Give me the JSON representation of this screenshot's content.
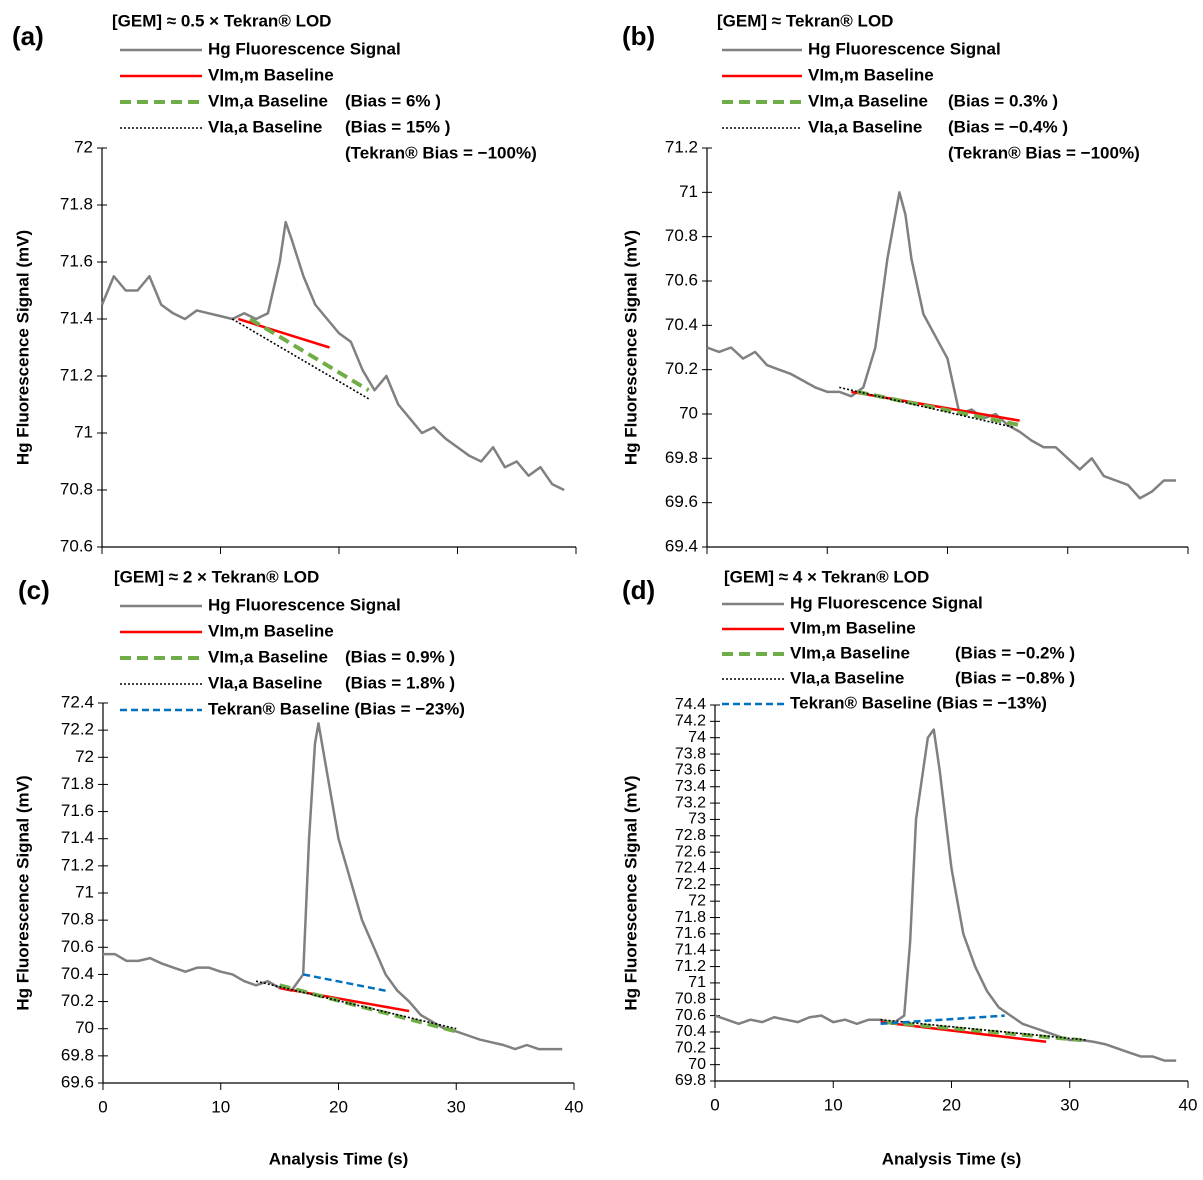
{
  "chart_data": [
    {
      "type": "line",
      "panel_label": "(a)",
      "title": "[GEM] ≈ 0.5 × Tekran® LOD",
      "y_label": "Hg Fluorescence Signal (mV)",
      "xlim": [
        0,
        40
      ],
      "xticks": [
        0,
        10,
        20,
        30,
        40
      ],
      "x_tick_labels": false,
      "ylim": [
        70.6,
        72
      ],
      "yticks": [
        70.6,
        70.8,
        71,
        71.2,
        71.4,
        71.6,
        71.8,
        72
      ],
      "series": [
        {
          "name": "Hg Fluorescence Signal",
          "color": "#808080",
          "dash": "solid",
          "x": [
            0,
            1,
            2,
            3,
            4,
            5,
            6,
            7,
            8,
            9,
            10,
            11,
            12,
            13,
            14,
            15,
            15.5,
            16,
            17,
            18,
            19,
            20,
            21,
            22,
            23,
            24,
            25,
            26,
            27,
            28,
            29,
            30,
            31,
            32,
            33,
            34,
            35,
            36,
            37,
            38,
            39
          ],
          "values": [
            71.45,
            71.55,
            71.5,
            71.5,
            71.55,
            71.45,
            71.42,
            71.4,
            71.43,
            71.42,
            71.41,
            71.4,
            71.42,
            71.4,
            71.42,
            71.6,
            71.74,
            71.68,
            71.55,
            71.45,
            71.4,
            71.35,
            71.32,
            71.22,
            71.15,
            71.2,
            71.1,
            71.05,
            71.0,
            71.02,
            70.98,
            70.95,
            70.92,
            70.9,
            70.95,
            70.88,
            70.9,
            70.85,
            70.88,
            70.82,
            70.8
          ]
        },
        {
          "name": "VIm,m Baseline",
          "color": "#ff0000",
          "dash": "solid",
          "x": [
            11.5,
            19.2
          ],
          "values": [
            71.4,
            71.3
          ]
        },
        {
          "name": "VIm,a Baseline",
          "color": "#70ad47",
          "dash": "dashed",
          "x": [
            12.5,
            22.5
          ],
          "values": [
            71.4,
            71.15
          ]
        },
        {
          "name": "VIa,a Baseline",
          "color": "#000000",
          "dash": "dotted",
          "x": [
            11,
            22.5
          ],
          "values": [
            71.4,
            71.12
          ]
        }
      ],
      "annotations": [
        "(Bias = 6% )",
        "(Bias = 15% )",
        "(Tekran® Bias = −100%)"
      ]
    },
    {
      "type": "line",
      "panel_label": "(b)",
      "title": "[GEM] ≈ Tekran® LOD",
      "y_label": "Hg Fluorescence Signal (mV)",
      "xlim": [
        0,
        40
      ],
      "xticks": [
        0,
        10,
        20,
        30,
        40
      ],
      "x_tick_labels": false,
      "ylim": [
        69.4,
        71.2
      ],
      "yticks": [
        69.4,
        69.6,
        69.8,
        70,
        70.2,
        70.4,
        70.6,
        70.8,
        71,
        71.2
      ],
      "series": [
        {
          "name": "Hg Fluorescence Signal",
          "color": "#808080",
          "dash": "solid",
          "x": [
            0,
            1,
            2,
            3,
            4,
            5,
            6,
            7,
            8,
            9,
            10,
            11,
            12,
            13,
            14,
            15,
            16,
            16.5,
            17,
            18,
            19,
            20,
            21,
            22,
            23,
            24,
            25,
            26,
            27,
            28,
            29,
            30,
            31,
            32,
            33,
            34,
            35,
            36,
            37,
            38,
            39
          ],
          "values": [
            70.3,
            70.28,
            70.3,
            70.25,
            70.28,
            70.22,
            70.2,
            70.18,
            70.15,
            70.12,
            70.1,
            70.1,
            70.08,
            70.12,
            70.3,
            70.7,
            71.0,
            70.9,
            70.7,
            70.45,
            70.35,
            70.25,
            70.0,
            70.02,
            69.98,
            70.0,
            69.95,
            69.92,
            69.88,
            69.85,
            69.85,
            69.8,
            69.75,
            69.8,
            69.72,
            69.7,
            69.68,
            69.62,
            69.65,
            69.7,
            69.7
          ]
        },
        {
          "name": "VIm,m Baseline",
          "color": "#ff0000",
          "dash": "solid",
          "x": [
            12,
            26
          ],
          "values": [
            70.1,
            69.97
          ]
        },
        {
          "name": "VIm,a Baseline",
          "color": "#70ad47",
          "dash": "dashed",
          "x": [
            12.5,
            26
          ],
          "values": [
            70.1,
            69.95
          ]
        },
        {
          "name": "VIa,a Baseline",
          "color": "#000000",
          "dash": "dotted",
          "x": [
            11,
            25.5
          ],
          "values": [
            70.12,
            69.94
          ]
        }
      ],
      "annotations": [
        "(Bias = 0.3% )",
        "(Bias = −0.4% )",
        "(Tekran® Bias = −100%)"
      ]
    },
    {
      "type": "line",
      "panel_label": "(c)",
      "title": "[GEM] ≈ 2 × Tekran® LOD",
      "y_label": "Hg Fluorescence Signal (mV)",
      "x_label": "Analysis Time (s)",
      "xlim": [
        0,
        40
      ],
      "xticks": [
        0,
        10,
        20,
        30,
        40
      ],
      "ylim": [
        69.6,
        72.4
      ],
      "yticks": [
        69.6,
        69.8,
        70,
        70.2,
        70.4,
        70.6,
        70.8,
        71,
        71.2,
        71.4,
        71.6,
        71.8,
        72,
        72.2,
        72.4
      ],
      "series": [
        {
          "name": "Hg Fluorescence Signal",
          "color": "#808080",
          "dash": "solid",
          "x": [
            0,
            1,
            2,
            3,
            4,
            5,
            6,
            7,
            8,
            9,
            10,
            11,
            12,
            13,
            14,
            15,
            16,
            17,
            17.5,
            18,
            18.3,
            19,
            20,
            21,
            22,
            23,
            24,
            25,
            26,
            27,
            28,
            29,
            30,
            31,
            32,
            33,
            34,
            35,
            36,
            37,
            38,
            39
          ],
          "values": [
            70.55,
            70.55,
            70.5,
            70.5,
            70.52,
            70.48,
            70.45,
            70.42,
            70.45,
            70.45,
            70.42,
            70.4,
            70.35,
            70.32,
            70.35,
            70.3,
            70.28,
            70.4,
            71.4,
            72.1,
            72.25,
            71.9,
            71.4,
            71.1,
            70.8,
            70.6,
            70.4,
            70.28,
            70.2,
            70.1,
            70.05,
            70.0,
            69.98,
            69.95,
            69.92,
            69.9,
            69.88,
            69.85,
            69.88,
            69.85,
            69.85,
            69.85
          ]
        },
        {
          "name": "VIm,m Baseline",
          "color": "#ff0000",
          "dash": "solid",
          "x": [
            15,
            26
          ],
          "values": [
            70.3,
            70.13
          ]
        },
        {
          "name": "VIm,a Baseline",
          "color": "#70ad47",
          "dash": "dashed",
          "x": [
            15,
            30
          ],
          "values": [
            70.32,
            69.98
          ]
        },
        {
          "name": "VIa,a Baseline",
          "color": "#000000",
          "dash": "dotted",
          "x": [
            13,
            30
          ],
          "values": [
            70.35,
            70.0
          ]
        },
        {
          "name": "Tekran® Baseline (Bias = −23%)",
          "color": "#0070c0",
          "dash": "dashed2",
          "x": [
            17,
            24
          ],
          "values": [
            70.4,
            70.28
          ]
        }
      ],
      "annotations": [
        "(Bias = 0.9% )",
        "(Bias = 1.8% )"
      ]
    },
    {
      "type": "line",
      "panel_label": "(d)",
      "title": "[GEM] ≈ 4 × Tekran® LOD",
      "y_label": "Hg Fluorescence Signal (mV)",
      "x_label": "Analysis Time (s)",
      "xlim": [
        0,
        40
      ],
      "xticks": [
        0,
        10,
        20,
        30,
        40
      ],
      "ylim": [
        69.8,
        74.4
      ],
      "yticks": [
        69.8,
        70,
        70.2,
        70.4,
        70.6,
        70.8,
        71,
        71.2,
        71.4,
        71.6,
        71.8,
        72,
        72.2,
        72.4,
        72.6,
        72.8,
        73,
        73.2,
        73.4,
        73.6,
        73.8,
        74,
        74.2,
        74.4
      ],
      "series": [
        {
          "name": "Hg Fluorescence Signal",
          "color": "#808080",
          "dash": "solid",
          "x": [
            0,
            1,
            2,
            3,
            4,
            5,
            6,
            7,
            8,
            9,
            10,
            11,
            12,
            13,
            14,
            15,
            16,
            16.5,
            17,
            18,
            18.5,
            19,
            20,
            21,
            22,
            23,
            24,
            25,
            26,
            27,
            28,
            29,
            30,
            31,
            32,
            33,
            34,
            35,
            36,
            37,
            38,
            39
          ],
          "values": [
            70.6,
            70.55,
            70.5,
            70.55,
            70.52,
            70.58,
            70.55,
            70.52,
            70.58,
            70.6,
            70.52,
            70.55,
            70.5,
            70.55,
            70.55,
            70.5,
            70.6,
            71.5,
            73.0,
            74.0,
            74.1,
            73.6,
            72.4,
            71.6,
            71.2,
            70.9,
            70.7,
            70.6,
            70.5,
            70.45,
            70.4,
            70.35,
            70.3,
            70.3,
            70.28,
            70.25,
            70.2,
            70.15,
            70.1,
            70.1,
            70.05,
            70.05
          ]
        },
        {
          "name": "VIm,m Baseline",
          "color": "#ff0000",
          "dash": "solid",
          "x": [
            14,
            28
          ],
          "values": [
            70.52,
            70.28
          ]
        },
        {
          "name": "VIm,a Baseline",
          "color": "#70ad47",
          "dash": "dashed",
          "x": [
            14.5,
            31
          ],
          "values": [
            70.52,
            70.3
          ]
        },
        {
          "name": "VIa,a Baseline",
          "color": "#000000",
          "dash": "dotted",
          "x": [
            14,
            31.5
          ],
          "values": [
            70.55,
            70.3
          ]
        },
        {
          "name": "Tekran® Baseline (Bias = −13%)",
          "color": "#0070c0",
          "dash": "dashed2",
          "x": [
            14,
            24.5
          ],
          "values": [
            70.5,
            70.6
          ]
        }
      ],
      "annotations": [
        "(Bias = −0.2% )",
        "(Bias = −0.8% )"
      ]
    }
  ]
}
